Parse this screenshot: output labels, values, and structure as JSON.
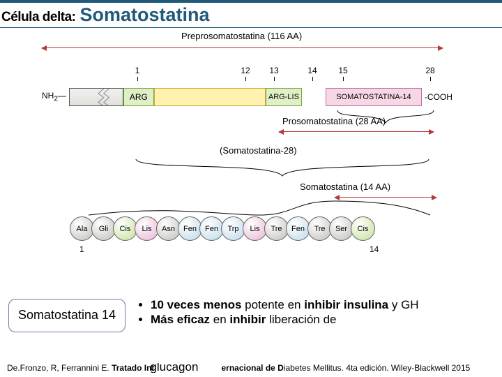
{
  "colors": {
    "accent": "#1f5a7a",
    "arrow": "#b33a3a",
    "arg_fill": "#dff0c8",
    "arg_border": "#7aa83a",
    "mid_fill": "#fff2b0",
    "mid_border": "#cfa93a",
    "arglis_fill": "#dff0c8",
    "ss14_fill": "#f6d7e6",
    "ss14_border": "#c76aa1",
    "gray_bead": "#d2d1cd",
    "green_bead": "#d5e8b3",
    "pink_bead": "#efc9df",
    "blue_bead": "#cfe4ef"
  },
  "title": {
    "prefix": "Célula delta:",
    "main": "Somatostatina"
  },
  "spans": {
    "prepro": "Preprosomatostatina (116 AA)",
    "pro": "Prosomatostatina (28 AA)",
    "s28": "(Somatostatina-28)",
    "s14": "Somatostatina (14 AA)"
  },
  "domain": {
    "nh2": "NH",
    "nh2_sub": "2",
    "arg": "ARG",
    "arglis": "ARG-LIS",
    "ss14": "SOMATOSTATINA-14",
    "cooh": "-COOH"
  },
  "ticks": [
    "1",
    "12",
    "13",
    "14",
    "15",
    "28"
  ],
  "aa": {
    "seq": [
      "Ala",
      "Gli",
      "Cis",
      "Lis",
      "Asn",
      "Fen",
      "Fen",
      "Trp",
      "Lis",
      "Tre",
      "Fen",
      "Tre",
      "Ser",
      "Cis"
    ],
    "cols": [
      "gray",
      "gray",
      "green",
      "pink",
      "gray",
      "blue",
      "blue",
      "blue",
      "pink",
      "gray",
      "blue",
      "gray",
      "gray",
      "green"
    ],
    "start": "1",
    "end": "14"
  },
  "box14": "Somatostatina 14",
  "bullets": {
    "b1_a": "10 veces menos",
    "b1_b": " potente en ",
    "b1_c": "inhibir insulina",
    "b1_d": " y GH",
    "b2_a": "Más eficaz",
    "b2_b": " en ",
    "b2_c": "inhibir",
    "b2_d": " liberación de "
  },
  "citation": {
    "pre": "De.Fronzo, R, Ferrannini E. ",
    "bold1": "Tratado Int",
    "overlap": "glucagon",
    "post": "iabetes Mellitus. 4ta edición. Wiley-Blackwell 2015",
    "mid_plain": "ernacional de D"
  }
}
